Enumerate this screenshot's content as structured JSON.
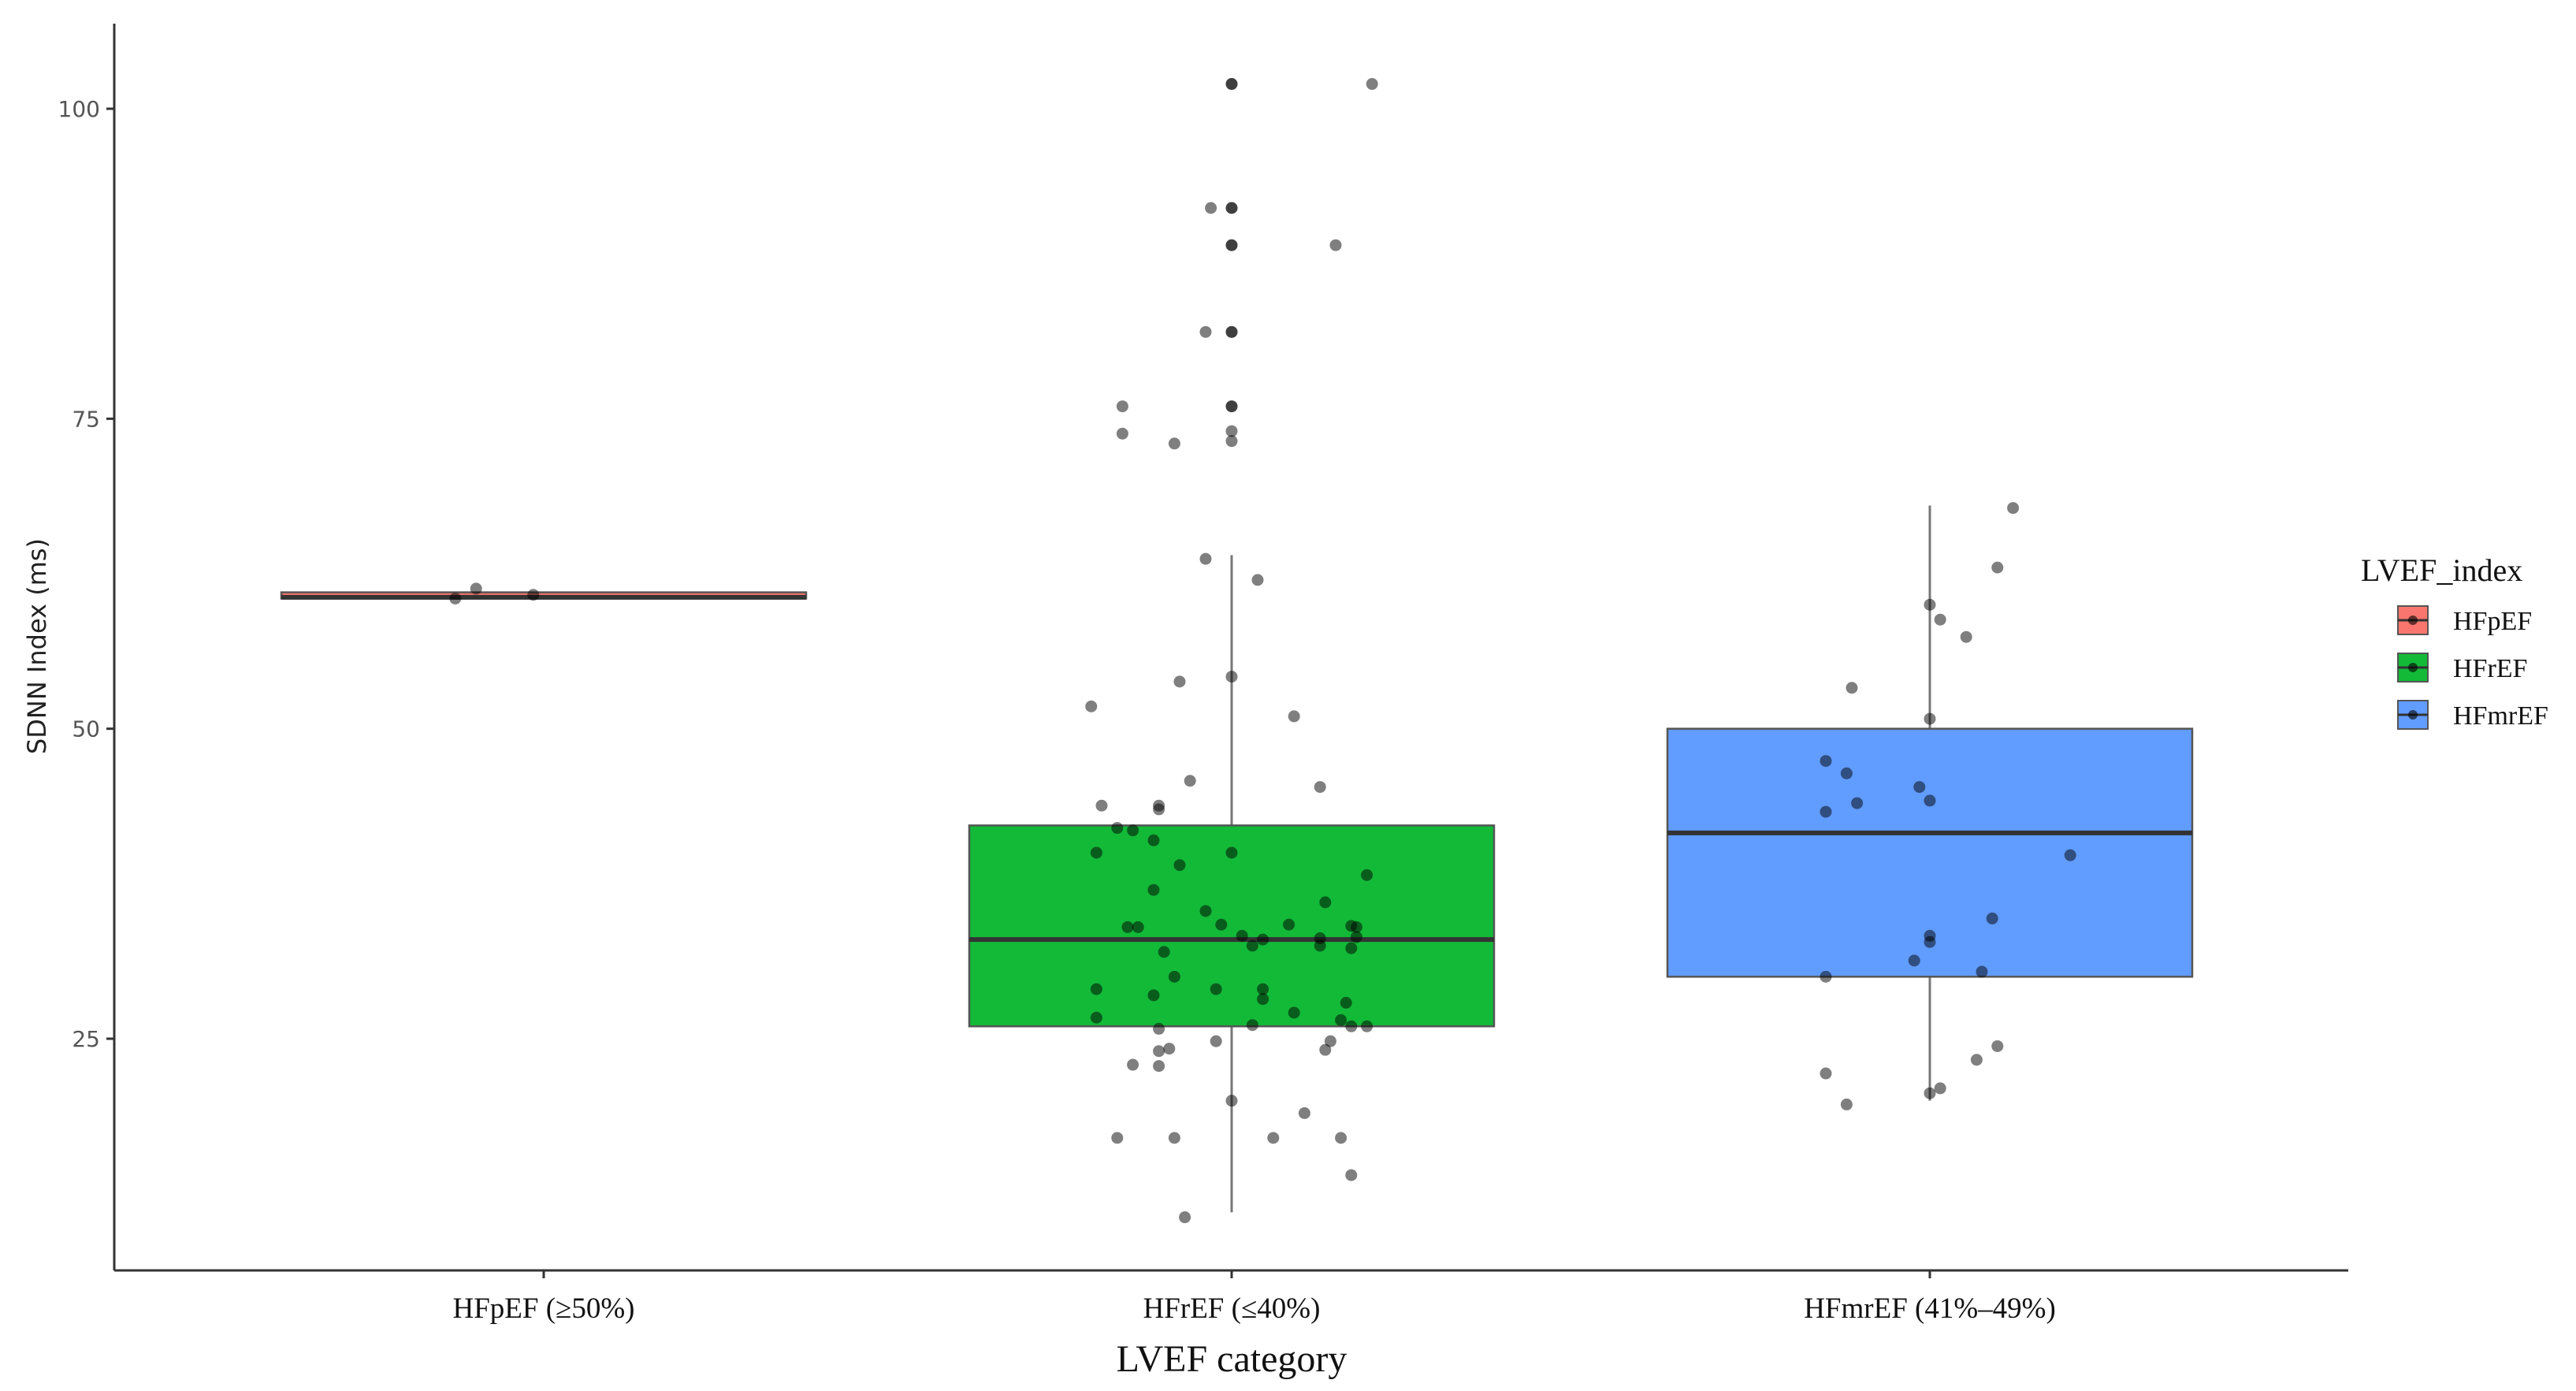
{
  "chart_data": {
    "type": "boxplot",
    "xlabel": "LVEF category",
    "ylabel": "SDNN Index (ms)",
    "ylim": [
      5,
      105
    ],
    "yticks": [
      25,
      50,
      75,
      100
    ],
    "grid": false,
    "legend": {
      "title": "LVEF_index",
      "placement": "right",
      "entries": [
        {
          "label": "HFpEF",
          "color": "#F8766D"
        },
        {
          "label": "HFrEF",
          "color": "#12BA38"
        },
        {
          "label": "HFmrEF",
          "color": "#619CFF"
        }
      ]
    },
    "categories": [
      "HFpEF (≥50%)",
      "HFrEF (≤40%)",
      "HFmrEF (41%–49%)"
    ],
    "series": [
      {
        "name": "HFpEF",
        "color": "#F8766D",
        "box": {
          "min": 60.5,
          "q1": 60.5,
          "median": 60.6,
          "q3": 61.0,
          "max": 61.0
        },
        "points": [
          [
            -0.17,
            60.5
          ],
          [
            -0.13,
            61.3
          ],
          [
            -0.02,
            60.8
          ]
        ]
      },
      {
        "name": "HFrEF",
        "color": "#12BA38",
        "box": {
          "min": 11,
          "q1": 26,
          "median": 33,
          "q3": 42.2,
          "max": 64
        },
        "points": [
          [
            0.0,
            102
          ],
          [
            0.0,
            102
          ],
          [
            0.27,
            102
          ],
          [
            -0.04,
            92
          ],
          [
            0.0,
            92
          ],
          [
            0.0,
            92
          ],
          [
            0.0,
            89
          ],
          [
            0.2,
            89
          ],
          [
            0.0,
            89
          ],
          [
            -0.05,
            82
          ],
          [
            0.0,
            82
          ],
          [
            0.0,
            82
          ],
          [
            -0.21,
            76
          ],
          [
            0.0,
            76
          ],
          [
            0.0,
            76
          ],
          [
            -0.21,
            73.8
          ],
          [
            -0.11,
            73
          ],
          [
            0.0,
            74
          ],
          [
            0.0,
            73.2
          ],
          [
            -0.05,
            63.7
          ],
          [
            0.05,
            62
          ],
          [
            -0.1,
            53.8
          ],
          [
            0.0,
            54.2
          ],
          [
            0.12,
            51
          ],
          [
            -0.27,
            51.8
          ],
          [
            0.17,
            45.3
          ],
          [
            -0.08,
            45.8
          ],
          [
            -0.25,
            43.8
          ],
          [
            -0.14,
            43.5
          ],
          [
            -0.14,
            43.8
          ],
          [
            -0.22,
            42
          ],
          [
            -0.19,
            41.8
          ],
          [
            -0.15,
            41
          ],
          [
            -0.26,
            40
          ],
          [
            0.0,
            40
          ],
          [
            -0.1,
            39
          ],
          [
            0.26,
            38.2
          ],
          [
            -0.15,
            37
          ],
          [
            -0.05,
            35.3
          ],
          [
            0.18,
            36
          ],
          [
            -0.18,
            34
          ],
          [
            -0.2,
            34
          ],
          [
            -0.02,
            34.2
          ],
          [
            0.11,
            34.2
          ],
          [
            0.23,
            34.1
          ],
          [
            0.24,
            34
          ],
          [
            0.06,
            33
          ],
          [
            0.02,
            33.3
          ],
          [
            0.17,
            33.1
          ],
          [
            0.24,
            33.2
          ],
          [
            0.04,
            32.5
          ],
          [
            -0.13,
            32
          ],
          [
            0.17,
            32.5
          ],
          [
            0.23,
            32.3
          ],
          [
            -0.11,
            30
          ],
          [
            -0.15,
            28.5
          ],
          [
            -0.26,
            29
          ],
          [
            -0.03,
            29
          ],
          [
            0.06,
            29
          ],
          [
            0.06,
            28.2
          ],
          [
            0.22,
            27.9
          ],
          [
            0.21,
            26.5
          ],
          [
            -0.26,
            26.7
          ],
          [
            0.12,
            27.1
          ],
          [
            0.04,
            26.1
          ],
          [
            0.23,
            26
          ],
          [
            0.26,
            26
          ],
          [
            -0.14,
            25.8
          ],
          [
            0.19,
            24.8
          ],
          [
            0.18,
            24.1
          ],
          [
            -0.12,
            24.2
          ],
          [
            -0.14,
            24
          ],
          [
            -0.03,
            24.8
          ],
          [
            -0.19,
            22.9
          ],
          [
            -0.14,
            22.8
          ],
          [
            0.0,
            20
          ],
          [
            0.14,
            19
          ],
          [
            -0.22,
            17
          ],
          [
            -0.11,
            17
          ],
          [
            0.08,
            17
          ],
          [
            0.21,
            17
          ],
          [
            0.23,
            14
          ],
          [
            -0.09,
            10.6
          ]
        ]
      },
      {
        "name": "HFmrEF",
        "color": "#619CFF",
        "box": {
          "min": 20,
          "q1": 30,
          "median": 41.6,
          "q3": 50,
          "max": 68
        },
        "points": [
          [
            0.16,
            67.8
          ],
          [
            0.13,
            63
          ],
          [
            0.0,
            60
          ],
          [
            0.02,
            58.8
          ],
          [
            0.07,
            57.4
          ],
          [
            -0.15,
            53.3
          ],
          [
            0.0,
            50.8
          ],
          [
            -0.2,
            47.4
          ],
          [
            -0.16,
            46.4
          ],
          [
            -0.02,
            45.3
          ],
          [
            0.0,
            44.2
          ],
          [
            -0.14,
            44
          ],
          [
            -0.2,
            43.3
          ],
          [
            0.27,
            39.8
          ],
          [
            0.12,
            34.7
          ],
          [
            0.0,
            33.3
          ],
          [
            0.0,
            32.8
          ],
          [
            -0.03,
            31.3
          ],
          [
            0.1,
            30.4
          ],
          [
            -0.2,
            30
          ],
          [
            0.13,
            24.4
          ],
          [
            0.09,
            23.3
          ],
          [
            -0.2,
            22.2
          ],
          [
            -0.16,
            19.7
          ],
          [
            0.02,
            21
          ],
          [
            0.0,
            20.6
          ]
        ]
      }
    ]
  }
}
